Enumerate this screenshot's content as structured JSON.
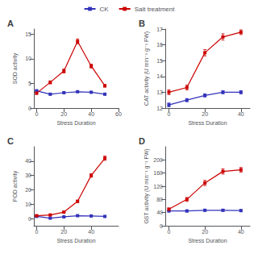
{
  "chart_data": [
    {
      "type": "line",
      "title": "A",
      "xlabel": "Stress Duration",
      "ylabel": "SOD activity",
      "x": [
        0,
        10,
        20,
        30,
        40,
        50
      ],
      "series": [
        {
          "name": "CK",
          "color": "#3333bb",
          "marker": "square",
          "values": [
            3.5,
            2.8,
            3.1,
            3.3,
            3.2,
            2.8
          ],
          "errors": [
            0.15,
            0.1,
            0.1,
            0.12,
            0.12,
            0.1
          ]
        },
        {
          "name": "Salt treatment",
          "color": "#cc0000",
          "marker": "square",
          "values": [
            3.0,
            5.2,
            7.5,
            13.5,
            8.5,
            4.5
          ],
          "errors": [
            0.2,
            0.3,
            0.4,
            0.5,
            0.4,
            0.25
          ]
        }
      ],
      "xlim": [
        -2,
        60
      ],
      "ylim": [
        0,
        16
      ],
      "xticks": [
        0,
        20,
        40,
        60
      ],
      "yticks": [
        0,
        5,
        10,
        15
      ],
      "grid": false,
      "legend": "top"
    },
    {
      "type": "line",
      "title": "B",
      "xlabel": "Stress Duration",
      "ylabel": "CAT activity (U min⁻¹ g⁻¹ FW)",
      "x": [
        0,
        10,
        20,
        30,
        40
      ],
      "series": [
        {
          "name": "CK",
          "color": "#3333bb",
          "marker": "square",
          "values": [
            12.2,
            12.5,
            12.8,
            13.0,
            13.0
          ],
          "errors": [
            0.12,
            0.1,
            0.1,
            0.1,
            0.1
          ]
        },
        {
          "name": "Salt treatment",
          "color": "#cc0000",
          "marker": "square",
          "values": [
            13.0,
            13.3,
            15.5,
            16.5,
            16.8
          ],
          "errors": [
            0.15,
            0.15,
            0.2,
            0.2,
            0.15
          ]
        }
      ],
      "xlim": [
        -2,
        45
      ],
      "ylim": [
        12,
        17
      ],
      "xticks": [
        0,
        20,
        40
      ],
      "yticks": [
        12,
        13,
        14,
        15,
        16,
        17
      ],
      "grid": false,
      "legend": "top"
    },
    {
      "type": "line",
      "title": "C",
      "xlabel": "Stress Duration",
      "ylabel": "POD activity",
      "x": [
        0,
        10,
        20,
        30,
        40,
        50
      ],
      "series": [
        {
          "name": "CK",
          "color": "#3333bb",
          "marker": "square",
          "values": [
            1.5,
            0.3,
            1.2,
            2.0,
            1.8,
            1.5
          ],
          "errors": [
            0.15,
            0.1,
            0.12,
            0.15,
            0.12,
            0.12
          ]
        },
        {
          "name": "Salt treatment",
          "color": "#cc0000",
          "marker": "square",
          "values": [
            2.0,
            2.5,
            4.5,
            12.0,
            30.0,
            42.0
          ],
          "errors": [
            0.2,
            0.25,
            0.4,
            0.8,
            1.2,
            1.5
          ]
        }
      ],
      "xlim": [
        -2,
        60
      ],
      "ylim": [
        -5,
        50
      ],
      "xticks": [
        0,
        20,
        40
      ],
      "yticks": [
        0,
        10,
        20,
        30,
        40
      ],
      "grid": false,
      "legend": "top"
    },
    {
      "type": "line",
      "title": "D",
      "xlabel": "Stress Duration",
      "ylabel": "GST activity (U min⁻¹ g⁻¹ FW)",
      "x": [
        0,
        10,
        20,
        30,
        40
      ],
      "series": [
        {
          "name": "CK",
          "color": "#3333bb",
          "marker": "square",
          "values": [
            45,
            45,
            47,
            47,
            46
          ],
          "errors": [
            3,
            3,
            3,
            3,
            3
          ]
        },
        {
          "name": "Salt treatment",
          "color": "#cc0000",
          "marker": "square",
          "values": [
            50,
            80,
            130,
            165,
            170
          ],
          "errors": [
            4,
            6,
            8,
            8,
            7
          ]
        }
      ],
      "xlim": [
        -2,
        45
      ],
      "ylim": [
        0,
        240
      ],
      "xticks": [
        0,
        20,
        40
      ],
      "yticks": [
        0,
        40,
        80,
        120,
        160,
        200
      ],
      "grid": false,
      "legend": "top"
    }
  ]
}
